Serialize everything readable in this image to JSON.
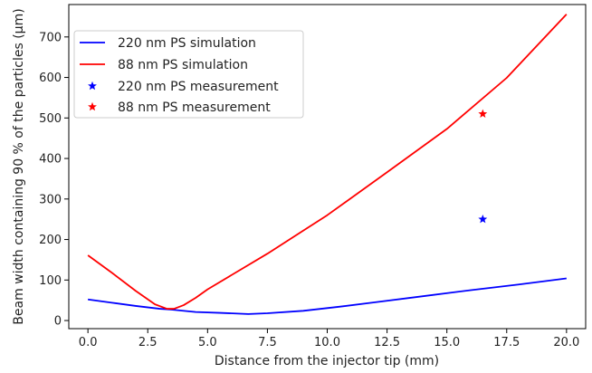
{
  "chart_data": {
    "type": "line",
    "xlabel": "Distance from the injector tip (mm)",
    "ylabel": "Beam width containing 90 % of the particles (µm)",
    "xlim": [
      -0.8,
      20.8
    ],
    "ylim": [
      -20,
      780
    ],
    "xticks": [
      0.0,
      2.5,
      5.0,
      7.5,
      10.0,
      12.5,
      15.0,
      17.5,
      20.0
    ],
    "xtick_labels": [
      "0.0",
      "2.5",
      "5.0",
      "7.5",
      "10.0",
      "12.5",
      "15.0",
      "17.5",
      "20.0"
    ],
    "yticks": [
      0,
      100,
      200,
      300,
      400,
      500,
      600,
      700
    ],
    "ytick_labels": [
      "0",
      "100",
      "200",
      "300",
      "400",
      "500",
      "600",
      "700"
    ],
    "grid": false,
    "legend_position": "top-left",
    "series": [
      {
        "name": "220 nm PS simulation",
        "kind": "line",
        "color": "#0000ff",
        "x": [
          0.0,
          1.0,
          2.0,
          3.0,
          3.5,
          4.5,
          5.5,
          6.7,
          7.5,
          9.0,
          10.5,
          12.0,
          14.0,
          16.0,
          18.0,
          20.0
        ],
        "y": [
          52,
          44,
          36,
          29,
          27,
          21,
          19,
          16,
          18,
          24,
          34,
          45,
          60,
          75,
          89,
          104
        ]
      },
      {
        "name": "88 nm PS simulation",
        "kind": "line",
        "color": "#ff0000",
        "x": [
          0.0,
          1.0,
          2.0,
          2.8,
          3.3,
          3.6,
          4.0,
          4.5,
          5.0,
          7.5,
          10.0,
          12.5,
          15.0,
          17.5,
          20.0
        ],
        "y": [
          161,
          118,
          73,
          40,
          29,
          29,
          38,
          56,
          77,
          165,
          260,
          366,
          473,
          599,
          756
        ]
      },
      {
        "name": "220 nm PS measurement",
        "kind": "marker",
        "marker": "star",
        "color": "#0000ff",
        "x": [
          16.5
        ],
        "y": [
          250
        ]
      },
      {
        "name": "88 nm PS measurement",
        "kind": "marker",
        "marker": "star",
        "color": "#ff0000",
        "x": [
          16.5
        ],
        "y": [
          510
        ]
      }
    ]
  }
}
